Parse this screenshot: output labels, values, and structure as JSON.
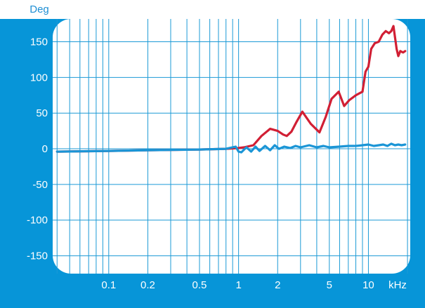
{
  "chart_data": {
    "type": "line",
    "title": "",
    "ylabel": "Deg",
    "xunit": "kHz",
    "xscale": "log",
    "xlim": [
      0.037,
      21
    ],
    "ylim": [
      -175,
      182
    ],
    "grid": true,
    "y_ticks": [
      150,
      100,
      50,
      0,
      -50,
      -100,
      -150
    ],
    "y_tick_labels": [
      "150",
      "100",
      "50",
      "0",
      "-50",
      "-100",
      "-150"
    ],
    "x_ticks": [
      0.1,
      0.2,
      0.5,
      1,
      2,
      5,
      10
    ],
    "x_tick_labels": [
      "0.1",
      "0.2",
      "0.5",
      "1",
      "2",
      "5",
      "10"
    ],
    "colors": {
      "frame": "#0795d8",
      "plot_bg": "#ffffff",
      "grid": "#1c9ad6",
      "text_light": "#ffffff",
      "unit_text": "#1f8fd4"
    },
    "series": [
      {
        "color": "#d11f34",
        "x": [
          0.04,
          0.1,
          0.2,
          0.5,
          0.8,
          1.0,
          1.1,
          1.3,
          1.5,
          1.75,
          2.0,
          2.2,
          2.35,
          2.55,
          2.8,
          3.1,
          3.6,
          4.2,
          4.7,
          5.2,
          5.9,
          6.5,
          7.1,
          8.0,
          9.0,
          9.5,
          10.0,
          10.5,
          11.2,
          12.0,
          12.8,
          13.6,
          14.4,
          15.0,
          15.6,
          16.0,
          16.5,
          17.0,
          17.6,
          18.5,
          19.2
        ],
        "y": [
          -4,
          -3,
          -2,
          -1,
          0,
          1,
          2,
          5,
          18,
          28,
          25,
          20,
          18,
          24,
          38,
          52,
          35,
          23,
          45,
          70,
          80,
          60,
          68,
          75,
          80,
          108,
          115,
          140,
          148,
          150,
          160,
          165,
          162,
          165,
          172,
          157,
          140,
          130,
          137,
          135,
          137
        ]
      },
      {
        "color": "#1a95d6",
        "x": [
          0.04,
          0.1,
          0.2,
          0.5,
          0.8,
          0.95,
          1.0,
          1.05,
          1.15,
          1.25,
          1.35,
          1.45,
          1.6,
          1.75,
          1.9,
          2.05,
          2.25,
          2.5,
          2.75,
          3.0,
          3.5,
          4.0,
          4.5,
          5.0,
          6.0,
          7.0,
          8.0,
          9.0,
          10.0,
          11.0,
          12.0,
          13.0,
          14.0,
          15.0,
          16.0,
          17.0,
          18.0,
          19.2
        ],
        "y": [
          -4,
          -3,
          -2,
          -1,
          0,
          3,
          -4,
          -5,
          2,
          -4,
          3,
          -3,
          4,
          -2,
          5,
          0,
          3,
          1,
          4,
          2,
          5,
          2,
          4,
          2,
          3,
          4,
          4,
          5,
          6,
          4,
          5,
          6,
          4,
          7,
          5,
          6,
          5,
          6
        ]
      }
    ]
  }
}
